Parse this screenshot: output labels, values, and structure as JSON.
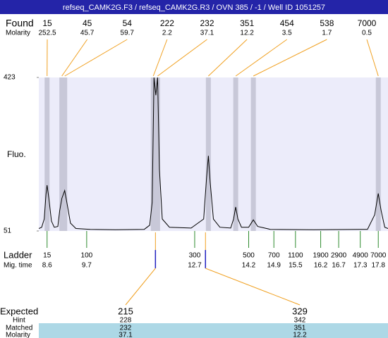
{
  "title": "refseq_CAMK2G.F3 / refseq_CAMK2G.R3 / OVN 385 / -1 / Well ID 1051257",
  "chart_data": {
    "type": "line",
    "y_label": "Fluo.",
    "ylim": [
      51,
      423
    ],
    "yticks": [
      51,
      423
    ],
    "xlim": [
      8.37,
      18.07
    ],
    "color": "#000000",
    "x": [
      8.37,
      8.45,
      8.52,
      8.57,
      8.6,
      8.65,
      8.72,
      8.8,
      8.9,
      8.95,
      9.01,
      9.09,
      9.15,
      9.25,
      9.4,
      9.8,
      10.5,
      11.3,
      11.45,
      11.52,
      11.57,
      11.62,
      11.67,
      11.72,
      11.8,
      12.0,
      12.6,
      12.95,
      13.03,
      13.08,
      13.13,
      13.22,
      13.4,
      13.7,
      13.78,
      13.84,
      13.9,
      14.0,
      14.2,
      14.33,
      14.45,
      14.8,
      16.0,
      17.5,
      17.7,
      17.8,
      17.88,
      17.98,
      18.07
    ],
    "values": [
      57,
      60,
      80,
      140,
      162,
      130,
      75,
      60,
      62,
      100,
      130,
      149,
      120,
      70,
      57,
      55,
      54,
      55,
      65,
      120,
      423,
      380,
      423,
      200,
      80,
      60,
      58,
      80,
      180,
      233,
      170,
      80,
      60,
      58,
      80,
      109,
      80,
      60,
      60,
      78,
      62,
      55,
      54,
      55,
      90,
      142,
      100,
      60,
      57
    ],
    "found": {
      "label": "Found",
      "molarity_label": "Molarity",
      "sizes": [
        15,
        45,
        54,
        222,
        232,
        351,
        454,
        538,
        7000
      ],
      "molarity": [
        252.5,
        45.7,
        59.7,
        2.2,
        37.1,
        12.2,
        3.5,
        1.7,
        0.5
      ],
      "times": [
        8.6,
        9.01,
        9.09,
        11.55,
        11.67,
        13.08,
        13.84,
        14.33,
        17.8
      ]
    },
    "ladder": {
      "label": "Ladder",
      "time_label": "Mig. time",
      "sizes": [
        15,
        100,
        300,
        500,
        700,
        1100,
        1900,
        2900,
        4900,
        7000
      ],
      "times": [
        8.6,
        9.7,
        12.7,
        14.2,
        14.9,
        15.5,
        16.2,
        16.7,
        17.3,
        17.8
      ]
    },
    "expected": {
      "label": "Expected",
      "hint_label": "Hint",
      "matched_label": "Matched",
      "molarity_label": "Molarity",
      "sizes": [
        215,
        329
      ],
      "hint": [
        228,
        342
      ],
      "matched": [
        232,
        351
      ],
      "molarity": [
        37.1,
        12.2
      ],
      "times": [
        11.61,
        13.0
      ]
    }
  }
}
